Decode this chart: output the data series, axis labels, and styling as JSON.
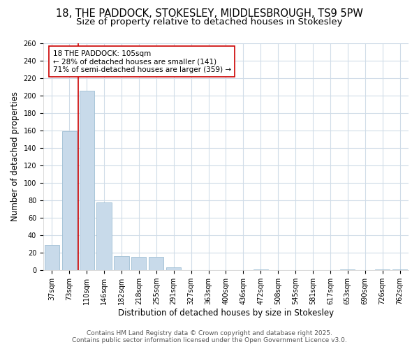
{
  "title_line1": "18, THE PADDOCK, STOKESLEY, MIDDLESBROUGH, TS9 5PW",
  "title_line2": "Size of property relative to detached houses in Stokesley",
  "xlabel": "Distribution of detached houses by size in Stokesley",
  "ylabel": "Number of detached properties",
  "categories": [
    "37sqm",
    "73sqm",
    "110sqm",
    "146sqm",
    "182sqm",
    "218sqm",
    "255sqm",
    "291sqm",
    "327sqm",
    "363sqm",
    "400sqm",
    "436sqm",
    "472sqm",
    "508sqm",
    "545sqm",
    "581sqm",
    "617sqm",
    "653sqm",
    "690sqm",
    "726sqm",
    "762sqm"
  ],
  "values": [
    29,
    159,
    205,
    78,
    16,
    15,
    15,
    3,
    0,
    0,
    0,
    0,
    1,
    0,
    0,
    0,
    0,
    1,
    0,
    1,
    1
  ],
  "bar_color": "#c8daea",
  "bar_edge_color": "#a0bfd4",
  "vline_color": "#cc0000",
  "vline_x_index": 2,
  "annotation_text": "18 THE PADDOCK: 105sqm\n← 28% of detached houses are smaller (141)\n71% of semi-detached houses are larger (359) →",
  "annotation_box_color": "#ffffff",
  "annotation_box_edge": "#cc0000",
  "ylim": [
    0,
    260
  ],
  "yticks": [
    0,
    20,
    40,
    60,
    80,
    100,
    120,
    140,
    160,
    180,
    200,
    220,
    240,
    260
  ],
  "background_color": "#ffffff",
  "plot_bg_color": "#ffffff",
  "grid_color": "#d0dce8",
  "footer_line1": "Contains HM Land Registry data © Crown copyright and database right 2025.",
  "footer_line2": "Contains public sector information licensed under the Open Government Licence v3.0.",
  "title_fontsize": 10.5,
  "subtitle_fontsize": 9.5,
  "axis_label_fontsize": 8.5,
  "tick_fontsize": 7,
  "annotation_fontsize": 7.5,
  "footer_fontsize": 6.5
}
